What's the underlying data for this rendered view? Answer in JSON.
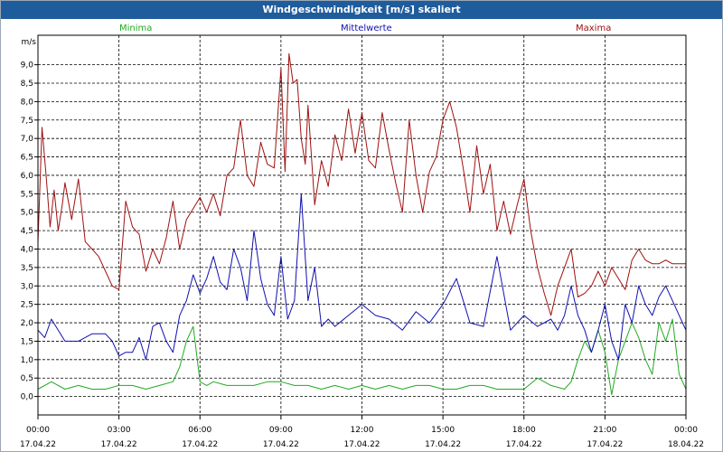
{
  "window": {
    "title": "Windgeschwindigkeit [m/s] skaliert"
  },
  "colors": {
    "titlebar": "#1f5c9c",
    "min": "#22aa22",
    "mean": "#1010b0",
    "max": "#a01010",
    "grid": "#000000"
  },
  "chart_data": {
    "type": "line",
    "title": "Windgeschwindigkeit [m/s] skaliert",
    "ylabel": "m/s",
    "xlabel": "",
    "ylim": [
      -0.5,
      9.8
    ],
    "yticks": [
      "0,0",
      "0,5",
      "1,0",
      "1,5",
      "2,0",
      "2,5",
      "3,0",
      "3,5",
      "4,0",
      "4,5",
      "5,0",
      "5,5",
      "6,0",
      "6,5",
      "7,0",
      "7,5",
      "8,0",
      "8,5",
      "9,0"
    ],
    "xticks": [
      {
        "time": "00:00",
        "date": "17.04.22"
      },
      {
        "time": "03:00",
        "date": "17.04.22"
      },
      {
        "time": "06:00",
        "date": "17.04.22"
      },
      {
        "time": "09:00",
        "date": "17.04.22"
      },
      {
        "time": "12:00",
        "date": "17.04.22"
      },
      {
        "time": "15:00",
        "date": "17.04.22"
      },
      {
        "time": "18:00",
        "date": "17.04.22"
      },
      {
        "time": "21:00",
        "date": "17.04.22"
      },
      {
        "time": "00:00",
        "date": "18.04.22"
      }
    ],
    "grid": true,
    "legend_position": "top",
    "series": [
      {
        "name": "Minima",
        "key": "min",
        "x": [
          0,
          0.5,
          1,
          1.5,
          2,
          2.5,
          3,
          3.5,
          4,
          4.5,
          5,
          5.25,
          5.5,
          5.75,
          6,
          6.25,
          6.5,
          7,
          7.5,
          8,
          8.5,
          9,
          9.5,
          10,
          10.5,
          11,
          11.5,
          12,
          12.5,
          13,
          13.5,
          14,
          14.5,
          15,
          15.5,
          16,
          16.5,
          17,
          17.5,
          18,
          18.5,
          19,
          19.5,
          19.75,
          20,
          20.25,
          20.5,
          20.75,
          21,
          21.25,
          21.5,
          21.75,
          22,
          22.25,
          22.5,
          22.75,
          23,
          23.25,
          23.5,
          23.75,
          24
        ],
        "values": [
          0.2,
          0.4,
          0.2,
          0.3,
          0.2,
          0.2,
          0.3,
          0.3,
          0.2,
          0.3,
          0.4,
          0.8,
          1.5,
          1.9,
          0.4,
          0.3,
          0.4,
          0.3,
          0.3,
          0.3,
          0.4,
          0.4,
          0.3,
          0.3,
          0.2,
          0.3,
          0.2,
          0.3,
          0.2,
          0.3,
          0.2,
          0.3,
          0.3,
          0.2,
          0.2,
          0.3,
          0.3,
          0.2,
          0.2,
          0.2,
          0.5,
          0.3,
          0.2,
          0.4,
          1.0,
          1.5,
          1.2,
          1.8,
          1.2,
          0.05,
          1.0,
          1.5,
          2.0,
          1.6,
          1.0,
          0.6,
          2.0,
          1.5,
          2.1,
          0.6,
          0.2
        ]
      },
      {
        "name": "Mittelwerte",
        "key": "mean",
        "x": [
          0,
          0.25,
          0.5,
          0.75,
          1,
          1.5,
          2,
          2.5,
          2.75,
          3,
          3.25,
          3.5,
          3.75,
          4,
          4.25,
          4.5,
          4.75,
          5,
          5.25,
          5.5,
          5.75,
          6,
          6.25,
          6.5,
          6.75,
          7,
          7.25,
          7.5,
          7.75,
          8,
          8.25,
          8.5,
          8.75,
          9,
          9.25,
          9.5,
          9.75,
          10,
          10.25,
          10.5,
          10.75,
          11,
          11.5,
          12,
          12.5,
          13,
          13.5,
          14,
          14.5,
          15,
          15.5,
          16,
          16.5,
          17,
          17.5,
          18,
          18.5,
          19,
          19.25,
          19.5,
          19.75,
          20,
          20.25,
          20.5,
          20.75,
          21,
          21.25,
          21.5,
          21.75,
          22,
          22.25,
          22.5,
          22.75,
          23,
          23.25,
          23.5,
          23.75,
          24
        ],
        "values": [
          1.8,
          1.6,
          2.1,
          1.8,
          1.5,
          1.5,
          1.7,
          1.7,
          1.5,
          1.1,
          1.2,
          1.2,
          1.6,
          1.0,
          1.9,
          2.0,
          1.5,
          1.2,
          2.2,
          2.6,
          3.3,
          2.8,
          3.2,
          3.8,
          3.1,
          2.9,
          4.0,
          3.5,
          2.6,
          4.5,
          3.2,
          2.5,
          2.2,
          3.8,
          2.1,
          2.6,
          5.5,
          2.6,
          3.5,
          1.9,
          2.1,
          1.9,
          2.2,
          2.5,
          2.2,
          2.1,
          1.8,
          2.3,
          2.0,
          2.5,
          3.2,
          2.0,
          1.9,
          3.8,
          1.8,
          2.2,
          1.9,
          2.1,
          1.8,
          2.2,
          3.0,
          2.2,
          1.8,
          1.2,
          1.8,
          2.5,
          1.5,
          1.0,
          2.5,
          2.0,
          3.0,
          2.5,
          2.2,
          2.7,
          3.0,
          2.6,
          2.2,
          1.8
        ]
      },
      {
        "name": "Maxima",
        "key": "max",
        "x": [
          0,
          0.15,
          0.3,
          0.45,
          0.6,
          0.75,
          0.9,
          1,
          1.25,
          1.5,
          1.75,
          2,
          2.25,
          2.5,
          2.75,
          3,
          3.25,
          3.5,
          3.75,
          4,
          4.25,
          4.5,
          4.75,
          5,
          5.25,
          5.5,
          5.75,
          6,
          6.25,
          6.5,
          6.75,
          7,
          7.25,
          7.5,
          7.75,
          8,
          8.25,
          8.5,
          8.75,
          9,
          9.15,
          9.3,
          9.45,
          9.6,
          9.75,
          9.9,
          10,
          10.25,
          10.5,
          10.75,
          11,
          11.25,
          11.5,
          11.75,
          12,
          12.25,
          12.5,
          12.75,
          13,
          13.25,
          13.5,
          13.75,
          14,
          14.25,
          14.5,
          14.75,
          15,
          15.25,
          15.5,
          15.75,
          16,
          16.25,
          16.5,
          16.75,
          17,
          17.25,
          17.5,
          17.75,
          18,
          18.25,
          18.5,
          18.75,
          19,
          19.25,
          19.5,
          19.75,
          20,
          20.25,
          20.5,
          20.75,
          21,
          21.25,
          21.5,
          21.75,
          22,
          22.25,
          22.5,
          22.75,
          23,
          23.25,
          23.5,
          23.75,
          24
        ],
        "values": [
          4.2,
          7.3,
          6.0,
          4.6,
          5.6,
          4.5,
          5.2,
          5.8,
          4.8,
          5.9,
          4.2,
          4.0,
          3.8,
          3.4,
          3.0,
          2.9,
          5.3,
          4.6,
          4.4,
          3.4,
          4.0,
          3.6,
          4.3,
          5.3,
          4.0,
          4.8,
          5.1,
          5.4,
          5.0,
          5.5,
          4.9,
          6.0,
          6.2,
          7.5,
          6.0,
          5.7,
          6.9,
          6.3,
          6.2,
          8.9,
          6.1,
          9.3,
          8.5,
          8.6,
          7.0,
          6.3,
          7.9,
          5.2,
          6.4,
          5.7,
          7.1,
          6.4,
          7.8,
          6.6,
          7.7,
          6.4,
          6.2,
          7.7,
          6.7,
          5.8,
          5.0,
          7.5,
          6.0,
          5.0,
          6.1,
          6.5,
          7.5,
          8.0,
          7.3,
          6.2,
          5.0,
          6.8,
          5.5,
          6.3,
          4.5,
          5.3,
          4.4,
          5.2,
          5.9,
          4.5,
          3.5,
          2.8,
          2.2,
          3.0,
          3.5,
          4.0,
          2.7,
          2.8,
          3.0,
          3.4,
          3.0,
          3.5,
          3.2,
          2.9,
          3.7,
          4.0,
          3.7,
          3.6,
          3.6,
          3.7,
          3.6,
          3.6,
          3.6
        ]
      }
    ]
  }
}
